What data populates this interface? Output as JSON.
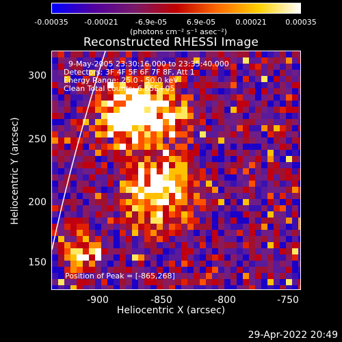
{
  "colorbar": {
    "ticks": [
      "-0.00035",
      "-0.00021",
      "-6.9e-05",
      "6.9e-05",
      "0.00021",
      "0.00035"
    ],
    "units": "(photons cm⁻² s⁻¹ asec⁻²)",
    "colors": [
      "#0000ff",
      "#5000a0",
      "#7a1a6a",
      "#c00000",
      "#ff6a00",
      "#ffd000",
      "#ffffff"
    ]
  },
  "title": "Reconstructed RHESSI Image",
  "info": {
    "line1": "9-May-2005 23:30:16.000 to 23:35:40.000",
    "line2": "Detectors: 3F 4F 5F 6F 7F 8F, Att 1",
    "line3": "Energy Range: 25.0 - 50.0 keV",
    "line4": "Clean   Total counts: 6.65E+05",
    "peak": "Position of Peak = [-865,268]"
  },
  "x_axis": {
    "label": "Heliocentric X (arcsec)",
    "ticks": [
      "-900",
      "-850",
      "-800",
      "-750"
    ]
  },
  "y_axis": {
    "label": "Heliocentric Y (arcsec)",
    "ticks": [
      "300",
      "250",
      "200",
      "150"
    ]
  },
  "timestamp": "29-Apr-2022 20:49"
}
